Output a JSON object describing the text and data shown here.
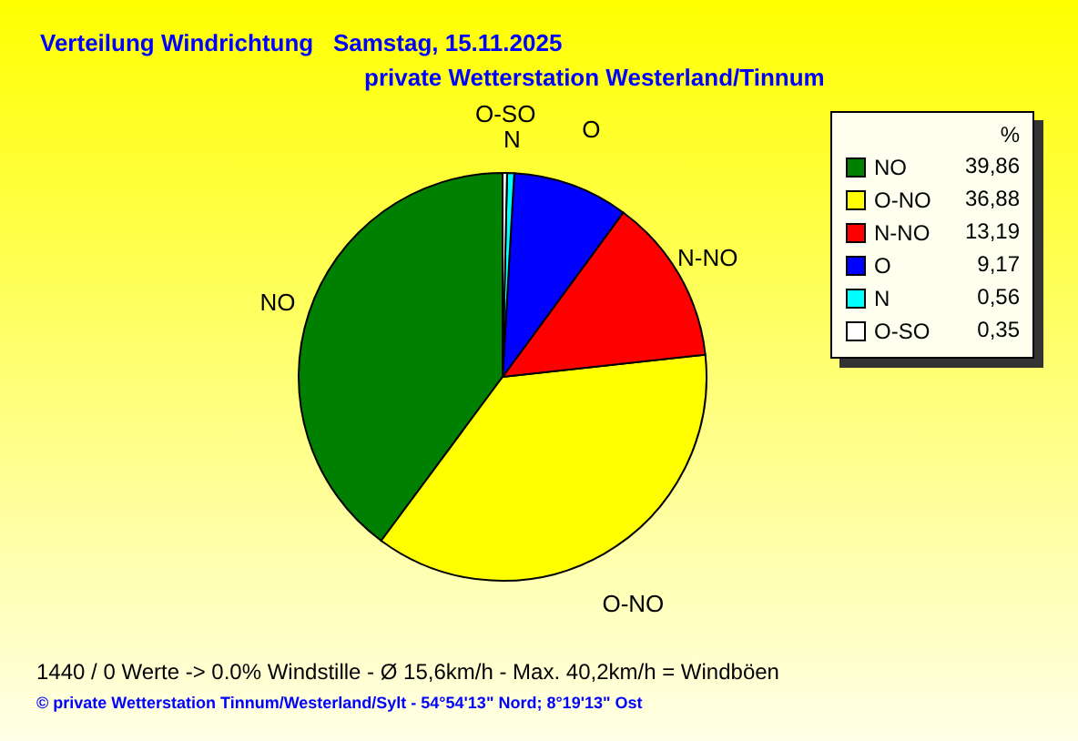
{
  "chart_data": {
    "type": "pie",
    "title": "Verteilung Windrichtung   Samstag, 15.11.2025",
    "subtitle": "private Wetterstation Westerland/Tinnum",
    "legend_title": "%",
    "legend": "top right",
    "categories": [
      "NO",
      "O-NO",
      "N-NO",
      "O",
      "N",
      "O-SO"
    ],
    "values": [
      39.86,
      36.88,
      13.19,
      9.17,
      0.56,
      0.35
    ],
    "value_labels": [
      "39,86",
      "36,88",
      "13,19",
      "9,17",
      "0,56",
      "0,35"
    ],
    "colors": [
      "#008000",
      "#ffff00",
      "#ff0000",
      "#0000ff",
      "#00ffff",
      "#ffffff"
    ],
    "annotations": [
      "1440 / 0 Werte  -> 0.0% Windstille   -   Ø 15,6km/h  -  Max. 40,2km/h = Windböen",
      "© private Wetterstation Tinnum/Westerland/Sylt   -   54°54'13\" Nord; 8°19'13\" Ost"
    ]
  }
}
